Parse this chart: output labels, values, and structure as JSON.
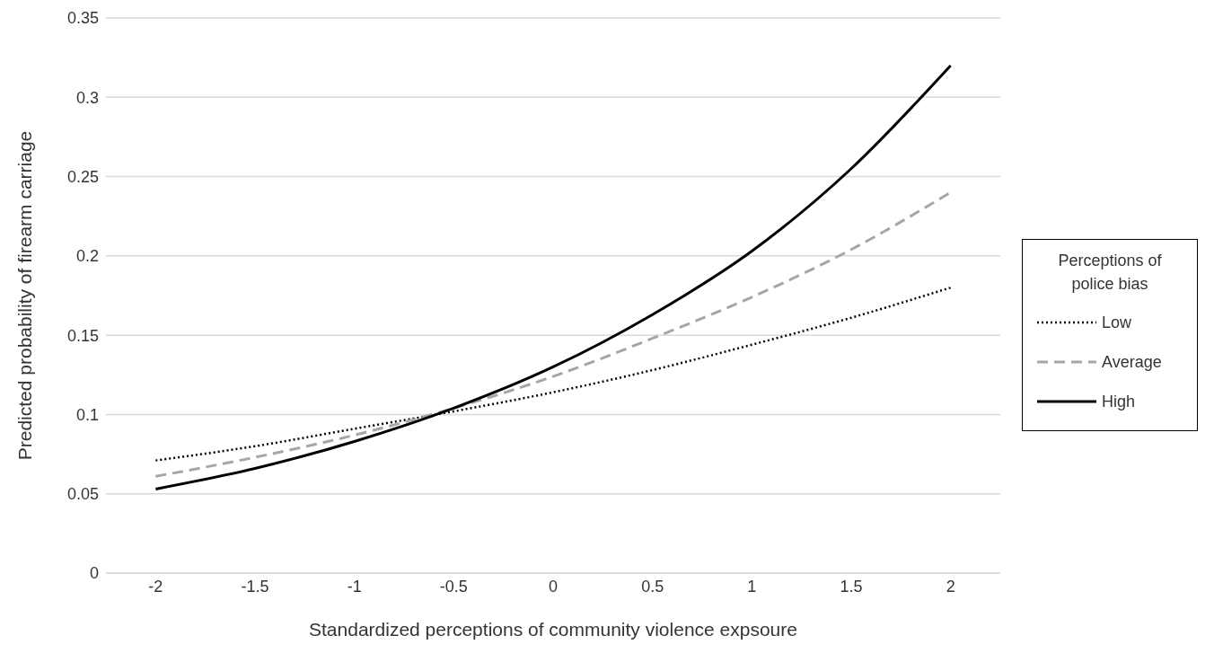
{
  "chart_data": {
    "type": "line",
    "xlabel": "Standardized perceptions of community violence expsoure",
    "ylabel": "Predicted probability of firearm carriage",
    "legend_title": "Perceptions of police bias",
    "x": [
      -2,
      -1.5,
      -1,
      -0.5,
      0,
      0.5,
      1,
      1.5,
      2
    ],
    "series": [
      {
        "name": "Low",
        "color": "#000000",
        "line_style": "dotted",
        "values": [
          0.071,
          0.08,
          0.091,
          0.102,
          0.114,
          0.128,
          0.144,
          0.161,
          0.18
        ]
      },
      {
        "name": "Average",
        "color": "#a6a6a6",
        "line_style": "dashed",
        "values": [
          0.061,
          0.073,
          0.087,
          0.104,
          0.124,
          0.148,
          0.174,
          0.204,
          0.24
        ]
      },
      {
        "name": "High",
        "color": "#000000",
        "line_style": "solid",
        "values": [
          0.053,
          0.066,
          0.083,
          0.104,
          0.13,
          0.163,
          0.203,
          0.255,
          0.32
        ]
      }
    ],
    "xlim": [
      -2.25,
      2.25
    ],
    "xticks": [
      -2,
      -1.5,
      -1,
      -0.5,
      0,
      0.5,
      1,
      1.5,
      2
    ],
    "ylim": [
      0,
      0.35
    ],
    "yticks": [
      0,
      0.05,
      0.1,
      0.15,
      0.2,
      0.25,
      0.3,
      0.35
    ],
    "grid": "y",
    "legend": "right",
    "marker": "none"
  }
}
